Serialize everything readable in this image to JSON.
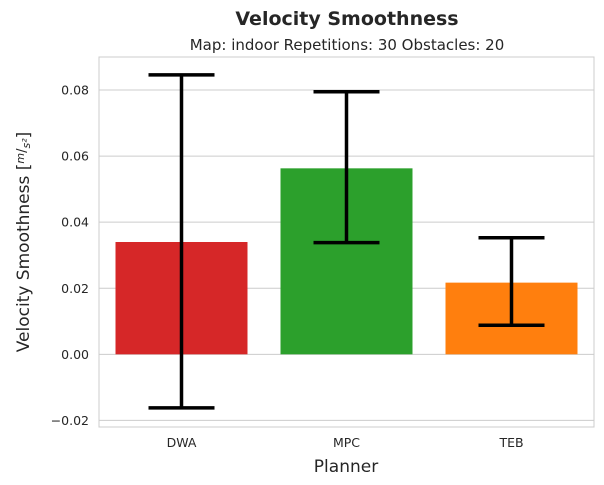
{
  "chart_data": {
    "type": "bar",
    "title": "Velocity Smoothness",
    "subtitle": "Map: indoor Repetitions: 30 Obstacles: 20",
    "xlabel": "Planner",
    "ylabel": "Velocity Smoothness [m/s²]",
    "ylabel_prefix": "Velocity Smoothness [",
    "ylabel_num": "m",
    "ylabel_den": "s²",
    "ylabel_suffix": "]",
    "categories": [
      "DWA",
      "MPC",
      "TEB"
    ],
    "values": [
      0.034,
      0.0563,
      0.0217
    ],
    "error_low": [
      -0.0162,
      0.0338,
      0.0088
    ],
    "error_high": [
      0.0846,
      0.0795,
      0.0353
    ],
    "colors": [
      "#d62728",
      "#2ca02c",
      "#ff7f0e"
    ],
    "ylim": [
      -0.022,
      0.09
    ],
    "yticks": [
      -0.02,
      0.0,
      0.02,
      0.04,
      0.06,
      0.08
    ],
    "ytick_labels": [
      "−0.02",
      "0.00",
      "0.02",
      "0.04",
      "0.06",
      "0.08"
    ],
    "grid": true
  }
}
